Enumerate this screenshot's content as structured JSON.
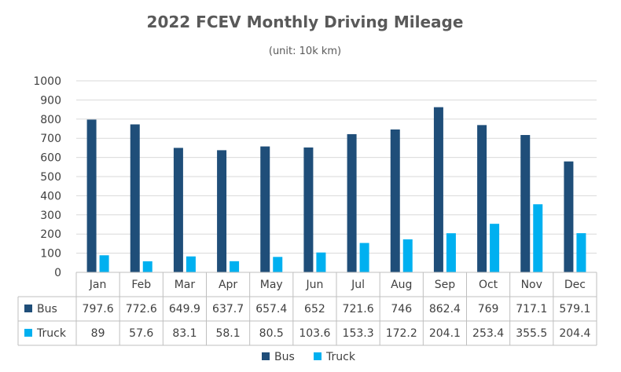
{
  "chart_data": {
    "type": "bar",
    "title": "2022 FCEV Monthly Driving Mileage",
    "subtitle": "(unit: 10k km)",
    "categories": [
      "Jan",
      "Feb",
      "Mar",
      "Apr",
      "May",
      "Jun",
      "Jul",
      "Aug",
      "Sep",
      "Oct",
      "Nov",
      "Dec"
    ],
    "series": [
      {
        "name": "Bus",
        "color": "#1F4E79",
        "values": [
          797.6,
          772.6,
          649.9,
          637.7,
          657.4,
          652,
          721.6,
          746,
          862.4,
          769,
          717.1,
          579.1
        ]
      },
      {
        "name": "Truck",
        "color": "#00B0F0",
        "values": [
          89,
          57.6,
          83.1,
          58.1,
          80.5,
          103.6,
          153.3,
          172.2,
          204.1,
          253.4,
          355.5,
          204.4
        ]
      }
    ],
    "ylim": [
      0,
      1000
    ],
    "yticks": [
      0,
      100,
      200,
      300,
      400,
      500,
      600,
      700,
      800,
      900,
      1000
    ],
    "grid": true,
    "data_table": true,
    "legend_position": "bottom"
  }
}
